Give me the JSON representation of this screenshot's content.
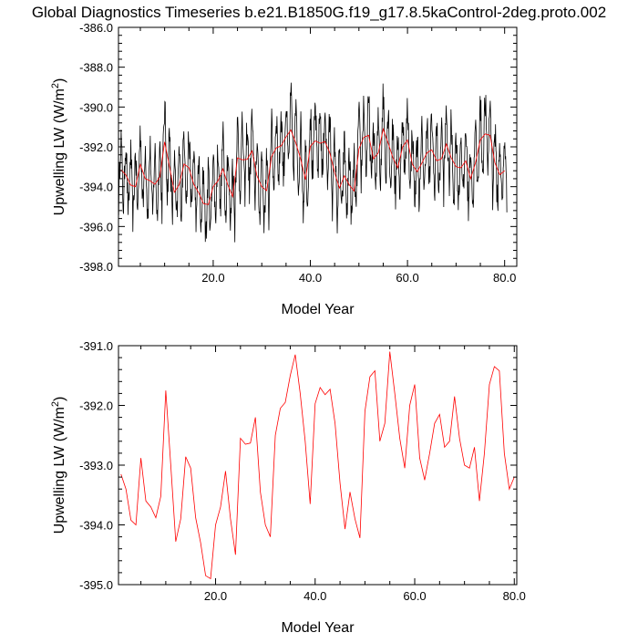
{
  "chart_data": {
    "title": "Global Diagnostics Timeseries b.e21.B1850G.f19_g17.8.5kaControl-2deg.proto.002",
    "panels": [
      {
        "type": "line",
        "xlabel": "Model Year",
        "ylabel": "Upwelling LW (W/m",
        "ylabel_sup": "2",
        "ylabel_tail": ")",
        "xlim": [
          0.5,
          82.5
        ],
        "ylim": [
          -398.0,
          -386.0
        ],
        "xticks": [
          20,
          40,
          60,
          80
        ],
        "xtick_labels": [
          "20.0",
          "40.0",
          "60.0",
          "80.0"
        ],
        "yticks": [
          -398,
          -396,
          -394,
          -392,
          -390,
          -388,
          -386
        ],
        "ytick_labels": [
          "-398.0",
          "-396.0",
          "-394.0",
          "-392.0",
          "-390.0",
          "-388.0",
          "-386.0"
        ],
        "series": [
          {
            "color": "#000000",
            "style": "monthly",
            "note_values_from": "annual_plus_seasonal"
          },
          {
            "color": "#ff0000",
            "style": "annual"
          }
        ]
      },
      {
        "type": "line",
        "xlabel": "Model Year",
        "ylabel": "Upwelling LW (W/m",
        "ylabel_sup": "2",
        "ylabel_tail": ")",
        "xlim": [
          0.5,
          80.5
        ],
        "ylim": [
          -395.0,
          -391.0
        ],
        "xticks": [
          20,
          40,
          60,
          80
        ],
        "xtick_labels": [
          "20.0",
          "40.0",
          "60.0",
          "80.0"
        ],
        "yticks": [
          -395,
          -394,
          -393,
          -392,
          -391
        ],
        "ytick_labels": [
          "-395.0",
          "-394.0",
          "-393.0",
          "-392.0",
          "-391.0"
        ],
        "series": [
          {
            "color": "#ff0000",
            "style": "annual"
          }
        ]
      }
    ],
    "annual_years": [
      1,
      2,
      3,
      4,
      5,
      6,
      7,
      8,
      9,
      10,
      11,
      12,
      13,
      14,
      15,
      16,
      17,
      18,
      19,
      20,
      21,
      22,
      23,
      24,
      25,
      26,
      27,
      28,
      29,
      30,
      31,
      32,
      33,
      34,
      35,
      36,
      37,
      38,
      39,
      40,
      41,
      42,
      43,
      44,
      45,
      46,
      47,
      48,
      49,
      50,
      51,
      52,
      53,
      54,
      55,
      56,
      57,
      58,
      59,
      60,
      61,
      62,
      63,
      64,
      65,
      66,
      67,
      68,
      69,
      70,
      71,
      72,
      73,
      74,
      75,
      76,
      77,
      78,
      79,
      80
    ],
    "annual_values": [
      -393.15,
      -393.4,
      -393.92,
      -394.0,
      -392.88,
      -393.6,
      -393.7,
      -393.88,
      -393.52,
      -391.75,
      -393.0,
      -394.28,
      -393.9,
      -392.86,
      -393.05,
      -393.88,
      -394.3,
      -394.85,
      -394.9,
      -394.0,
      -393.7,
      -393.1,
      -393.9,
      -394.5,
      -392.55,
      -392.65,
      -392.63,
      -392.2,
      -393.45,
      -394.0,
      -394.2,
      -392.5,
      -392.05,
      -391.95,
      -391.5,
      -391.15,
      -391.8,
      -392.6,
      -393.65,
      -391.97,
      -391.7,
      -391.82,
      -391.73,
      -392.3,
      -393.3,
      -394.07,
      -393.45,
      -393.9,
      -394.22,
      -392.1,
      -391.52,
      -391.42,
      -392.6,
      -392.3,
      -391.1,
      -391.8,
      -392.55,
      -393.05,
      -392.0,
      -391.65,
      -392.88,
      -393.25,
      -392.8,
      -392.3,
      -392.15,
      -392.7,
      -392.6,
      -391.85,
      -392.55,
      -393.0,
      -393.05,
      -392.7,
      -393.6,
      -392.8,
      -391.65,
      -391.35,
      -391.42,
      -392.8,
      -393.4,
      -393.2
    ]
  }
}
